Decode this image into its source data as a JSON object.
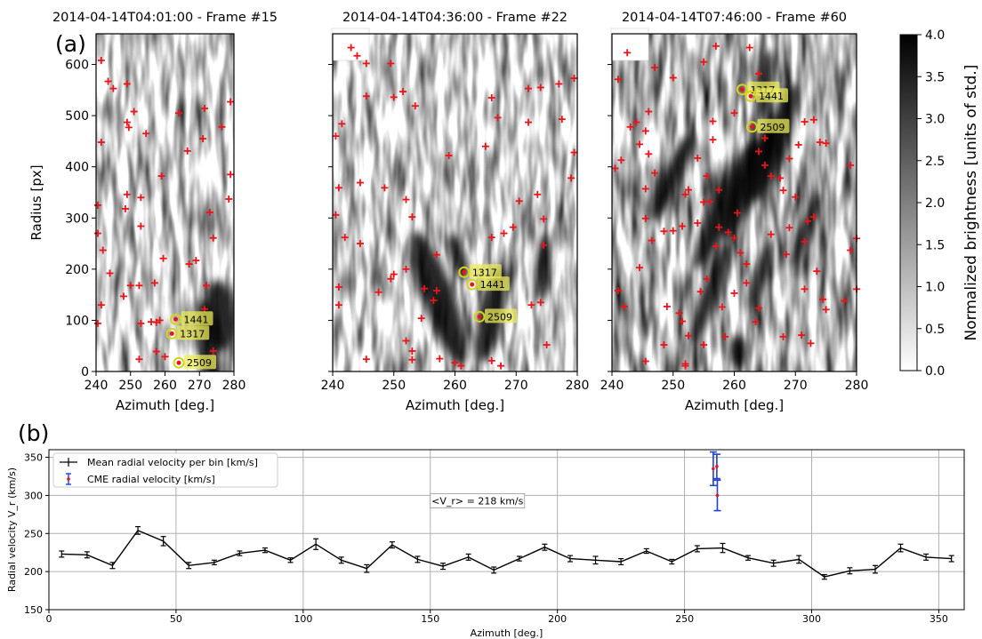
{
  "panel_labels": {
    "a": "(a)",
    "b": "(b)"
  },
  "colors": {
    "cross": "#e8151b",
    "highlight": "#ecec5a",
    "mean_line": "#000000",
    "cme_bar": "#1f3fd6",
    "cme_point": "#e8151b"
  },
  "colorbar": {
    "label": "Normalized brightness [units of std.]",
    "ticks": [
      "0.0",
      "0.5",
      "1.0",
      "1.5",
      "2.0",
      "2.5",
      "3.0",
      "3.5",
      "4.0"
    ],
    "range": [
      0,
      4
    ],
    "colormap": "white-to-black"
  },
  "chart_data": [
    {
      "type": "scatter",
      "title": "2014-04-14T04:01:00 - Frame #15",
      "xlabel": "Azimuth [deg.]",
      "ylabel": "Radius [px]",
      "xlim": [
        240,
        280
      ],
      "ylim": [
        0,
        660
      ],
      "xticks": [
        "240",
        "250",
        "260",
        "270",
        "280"
      ],
      "yticks": [
        "0",
        "100",
        "200",
        "300",
        "400",
        "500",
        "600"
      ],
      "cmes": [
        {
          "id": "1441",
          "x": 263.1,
          "y": 102
        },
        {
          "id": "1317",
          "x": 262.0,
          "y": 74
        },
        {
          "id": "2509",
          "x": 264.0,
          "y": 17
        }
      ],
      "features": [
        [
          241.5,
          608
        ],
        [
          243.5,
          567
        ],
        [
          245,
          553
        ],
        [
          249,
          562
        ],
        [
          251,
          508
        ],
        [
          249,
          487
        ],
        [
          249.5,
          477
        ],
        [
          254.5,
          465
        ],
        [
          241.5,
          448
        ],
        [
          264,
          505
        ],
        [
          271.5,
          514
        ],
        [
          271,
          455
        ],
        [
          276.5,
          478
        ],
        [
          279,
          527
        ],
        [
          266.5,
          431
        ],
        [
          259,
          382
        ],
        [
          240.5,
          325
        ],
        [
          240.5,
          270
        ],
        [
          242,
          237
        ],
        [
          248.5,
          318
        ],
        [
          249,
          346
        ],
        [
          253,
          340
        ],
        [
          253,
          284
        ],
        [
          279,
          385
        ],
        [
          278.5,
          337
        ],
        [
          273,
          311
        ],
        [
          274,
          261
        ],
        [
          244,
          192
        ],
        [
          248,
          147
        ],
        [
          250,
          168
        ],
        [
          252.5,
          168
        ],
        [
          257,
          173
        ],
        [
          259.5,
          221
        ],
        [
          267,
          210
        ],
        [
          269,
          217
        ],
        [
          272,
          168
        ],
        [
          271.5,
          122
        ],
        [
          240.5,
          94
        ],
        [
          241.5,
          130
        ],
        [
          253,
          94
        ],
        [
          256,
          97
        ],
        [
          257.5,
          96
        ],
        [
          258.5,
          100
        ],
        [
          257.5,
          39
        ],
        [
          252.5,
          24
        ],
        [
          260,
          29
        ],
        [
          274,
          40
        ]
      ]
    },
    {
      "type": "scatter",
      "title": "2014-04-14T04:36:00 - Frame #22",
      "xlabel": "Azimuth [deg.]",
      "ylabel": "",
      "xlim": [
        240,
        280
      ],
      "ylim": [
        0,
        660
      ],
      "xticks": [
        "240",
        "250",
        "260",
        "270",
        "280"
      ],
      "yticks": [],
      "cmes": [
        {
          "id": "1317",
          "x": 261.5,
          "y": 194
        },
        {
          "id": "1441",
          "x": 262.8,
          "y": 170
        },
        {
          "id": "2509",
          "x": 264.0,
          "y": 107
        }
      ],
      "features": [
        [
          243,
          633
        ],
        [
          244,
          617
        ],
        [
          245.5,
          602
        ],
        [
          249.5,
          602
        ],
        [
          251.5,
          547
        ],
        [
          245.5,
          538
        ],
        [
          250,
          536
        ],
        [
          253.5,
          519
        ],
        [
          241.5,
          484
        ],
        [
          240.5,
          460
        ],
        [
          266,
          535
        ],
        [
          267,
          496
        ],
        [
          272,
          487
        ],
        [
          272,
          553
        ],
        [
          274,
          555
        ],
        [
          277,
          562
        ],
        [
          277.5,
          493
        ],
        [
          279.5,
          573
        ],
        [
          265,
          440
        ],
        [
          259,
          422
        ],
        [
          241,
          359
        ],
        [
          244.5,
          369
        ],
        [
          248.5,
          359
        ],
        [
          252,
          336
        ],
        [
          253,
          302
        ],
        [
          240.5,
          306
        ],
        [
          242,
          262
        ],
        [
          244.5,
          250
        ],
        [
          270.5,
          333
        ],
        [
          273.5,
          346
        ],
        [
          274.5,
          298
        ],
        [
          279,
          378
        ],
        [
          279.5,
          428
        ],
        [
          269.5,
          282
        ],
        [
          268,
          270
        ],
        [
          266,
          262
        ],
        [
          274.5,
          247
        ],
        [
          257,
          228
        ],
        [
          250,
          190
        ],
        [
          249.5,
          181
        ],
        [
          252,
          200
        ],
        [
          255,
          162
        ],
        [
          257,
          158
        ],
        [
          256.5,
          139
        ],
        [
          247.5,
          155
        ],
        [
          241,
          165
        ],
        [
          241,
          130
        ],
        [
          254.5,
          104
        ],
        [
          252,
          60
        ],
        [
          253,
          40
        ],
        [
          257.5,
          25
        ],
        [
          260,
          17
        ],
        [
          261,
          11
        ],
        [
          266,
          21
        ],
        [
          267.5,
          11
        ],
        [
          272.5,
          130
        ],
        [
          274,
          135
        ],
        [
          275,
          52
        ],
        [
          253,
          23
        ],
        [
          245.5,
          24
        ]
      ]
    },
    {
      "type": "scatter",
      "title": "2014-04-14T07:46:00 - Frame #60",
      "xlabel": "Azimuth [deg.]",
      "ylabel": "",
      "xlim": [
        240,
        280
      ],
      "ylim": [
        0,
        660
      ],
      "xticks": [
        "240",
        "250",
        "260",
        "270",
        "280"
      ],
      "yticks": [],
      "cmes": [
        {
          "id": "1317",
          "x": 261.3,
          "y": 551
        },
        {
          "id": "1441",
          "x": 262.7,
          "y": 538
        },
        {
          "id": "2509",
          "x": 262.9,
          "y": 478
        }
      ],
      "features": [
        [
          241,
          571
        ],
        [
          242.5,
          623
        ],
        [
          247,
          594
        ],
        [
          250,
          574
        ],
        [
          255,
          605
        ],
        [
          257,
          636
        ],
        [
          262.5,
          633
        ],
        [
          264,
          582
        ],
        [
          246,
          508
        ],
        [
          244,
          487
        ],
        [
          243,
          478
        ],
        [
          244.5,
          444
        ],
        [
          245.5,
          470
        ],
        [
          240.5,
          397
        ],
        [
          241.5,
          413
        ],
        [
          246,
          425
        ],
        [
          247,
          388
        ],
        [
          245.5,
          357
        ],
        [
          245.5,
          299
        ],
        [
          241,
          158
        ],
        [
          242,
          127
        ],
        [
          244.5,
          203
        ],
        [
          246.5,
          256
        ],
        [
          248.5,
          274
        ],
        [
          250,
          275
        ],
        [
          252,
          346
        ],
        [
          251.5,
          284
        ],
        [
          254,
          290
        ],
        [
          255,
          331
        ],
        [
          256,
          332
        ],
        [
          257.5,
          355
        ],
        [
          257,
          245
        ],
        [
          257.5,
          282
        ],
        [
          259,
          272
        ],
        [
          260.5,
          310
        ],
        [
          260,
          261
        ],
        [
          261,
          232
        ],
        [
          262,
          210
        ],
        [
          262,
          173
        ],
        [
          260,
          153
        ],
        [
          258,
          126
        ],
        [
          258.5,
          68
        ],
        [
          255,
          52
        ],
        [
          252,
          11
        ],
        [
          248.5,
          52
        ],
        [
          245.5,
          20
        ],
        [
          251,
          114
        ],
        [
          251.5,
          98
        ],
        [
          252.5,
          70
        ],
        [
          249,
          127
        ],
        [
          255.5,
          181
        ],
        [
          254.5,
          156
        ],
        [
          256.5,
          489
        ],
        [
          260,
          505
        ],
        [
          265,
          456
        ],
        [
          264,
          430
        ],
        [
          266,
          382
        ],
        [
          267.5,
          378
        ],
        [
          268,
          354
        ],
        [
          265,
          403
        ],
        [
          266,
          268
        ],
        [
          264,
          124
        ],
        [
          263.5,
          97
        ],
        [
          269,
          416
        ],
        [
          270.5,
          443
        ],
        [
          271.5,
          488
        ],
        [
          273,
          492
        ],
        [
          274,
          448
        ],
        [
          275,
          446
        ],
        [
          279,
          403
        ],
        [
          270,
          341
        ],
        [
          269,
          281
        ],
        [
          268.5,
          229
        ],
        [
          272,
          294
        ],
        [
          273,
          302
        ],
        [
          271.5,
          254
        ],
        [
          273.5,
          196
        ],
        [
          274.5,
          141
        ],
        [
          275,
          121
        ],
        [
          279,
          237
        ],
        [
          280,
          260
        ],
        [
          280,
          161
        ],
        [
          278,
          138
        ],
        [
          271,
          71
        ],
        [
          272.5,
          55
        ],
        [
          252,
          15
        ],
        [
          268,
          68
        ],
        [
          271.5,
          161
        ],
        [
          254,
          417
        ],
        [
          255.5,
          382
        ],
        [
          252.5,
          355
        ],
        [
          256.5,
          453
        ]
      ]
    },
    {
      "type": "line",
      "title": "",
      "xlabel": "Azimuth [deg.]",
      "ylabel": "Radial velocity V_r (km/s)",
      "xlim": [
        0,
        360
      ],
      "ylim": [
        150,
        360
      ],
      "xticks": [
        "0",
        "50",
        "100",
        "150",
        "200",
        "250",
        "300",
        "350"
      ],
      "yticks": [
        "150",
        "200",
        "250",
        "300",
        "350"
      ],
      "grid": true,
      "legend_position": "top-left",
      "annotation": "<V_r> = 218 km/s",
      "annotation_pos": {
        "x": 150,
        "y": 293
      },
      "series": [
        {
          "name": "Mean radial velocity per bin [km/s]",
          "x": [
            5,
            15,
            25,
            35,
            45,
            55,
            65,
            75,
            85,
            95,
            105,
            115,
            125,
            135,
            145,
            155,
            165,
            175,
            185,
            195,
            205,
            215,
            225,
            235,
            245,
            255,
            265,
            275,
            285,
            295,
            305,
            315,
            325,
            335,
            345,
            355
          ],
          "y": [
            223,
            222,
            208,
            254,
            240,
            208,
            212,
            224,
            228,
            215,
            236,
            215,
            204,
            235,
            216,
            207,
            219,
            202,
            217,
            232,
            217,
            215,
            213,
            227,
            213,
            230,
            231,
            218,
            211,
            216,
            193,
            201,
            203,
            231,
            219,
            217
          ],
          "err": [
            4,
            4,
            4,
            5,
            6,
            4,
            3,
            3,
            3,
            3,
            7,
            4,
            5,
            4,
            4,
            4,
            4,
            4,
            3,
            4,
            4,
            5,
            4,
            3,
            3,
            4,
            6,
            3,
            4,
            5,
            3,
            4,
            5,
            5,
            4,
            4
          ]
        },
        {
          "name": "CME radial velocity [km/s]",
          "x": [
            261.3,
            262.7,
            262.9
          ],
          "y": [
            335,
            338,
            300
          ],
          "err": [
            22,
            16,
            20
          ]
        }
      ]
    }
  ]
}
